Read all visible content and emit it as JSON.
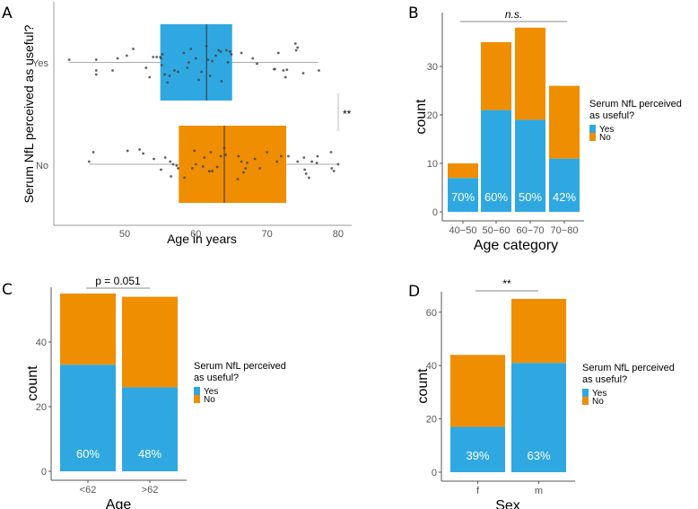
{
  "colors": {
    "yes": "#2fa8e1",
    "no": "#ef8e01",
    "axis": "#999999",
    "point": "#444444",
    "median": "#333333"
  },
  "chart_data": [
    {
      "panel": "A",
      "type": "boxplot",
      "xlabel": "Age in years",
      "ylabel": "Serum NfL perceived as useful?",
      "xlim": [
        40.5,
        81.5
      ],
      "xticks": [
        50,
        60,
        70,
        80
      ],
      "categories": [
        "Yes",
        "No"
      ],
      "boxes": [
        {
          "group": "Yes",
          "min": 42.2,
          "q1": 55.0,
          "median": 61.5,
          "q3": 65.1,
          "max": 77.2
        },
        {
          "group": "No",
          "min": 45.0,
          "q1": 57.6,
          "median": 64.0,
          "q3": 72.7,
          "max": 80.0
        }
      ],
      "points": {
        "Yes": [
          [
            42.2,
            0.1
          ],
          [
            46,
            0.1
          ],
          [
            46,
            -0.3
          ],
          [
            46,
            -0.45
          ],
          [
            48.3,
            -0.3
          ],
          [
            50.3,
            0.25
          ],
          [
            51.2,
            0.5
          ],
          [
            49,
            0.15
          ],
          [
            53,
            -0.2
          ],
          [
            53.5,
            -0.55
          ],
          [
            54,
            0.2
          ],
          [
            54.5,
            0.2
          ],
          [
            55,
            0.2
          ],
          [
            55.1,
            0.15
          ],
          [
            55.3,
            0.3
          ],
          [
            55.2,
            -0.1
          ],
          [
            55.6,
            -0.45
          ],
          [
            56,
            -0.75
          ],
          [
            56.3,
            -0.5
          ],
          [
            57,
            -0.3
          ],
          [
            57.5,
            -0.35
          ],
          [
            58.3,
            0.35
          ],
          [
            58.8,
            -0.2
          ],
          [
            59,
            0.0
          ],
          [
            59.3,
            0.5
          ],
          [
            60,
            0.15
          ],
          [
            60.4,
            -0.65
          ],
          [
            60.8,
            -0.35
          ],
          [
            61.5,
            0.6
          ],
          [
            61.7,
            0.1
          ],
          [
            62,
            -0.5
          ],
          [
            62.3,
            0.05
          ],
          [
            62.8,
            0.25
          ],
          [
            63.2,
            0.45
          ],
          [
            63.5,
            0.4
          ],
          [
            63.6,
            -0.7
          ],
          [
            64.3,
            0.45
          ],
          [
            64.5,
            0.0
          ],
          [
            64.8,
            0.4
          ],
          [
            65,
            0.3
          ],
          [
            66.4,
            0.35
          ],
          [
            68,
            0.15
          ],
          [
            68.6,
            -0.05
          ],
          [
            71,
            -0.25
          ],
          [
            71.1,
            -0.25
          ],
          [
            71.6,
            0.35
          ],
          [
            72.3,
            -0.3
          ],
          [
            72.6,
            -0.55
          ],
          [
            72.8,
            -0.27
          ],
          [
            74,
            0.7
          ],
          [
            74.1,
            0.45
          ],
          [
            74.3,
            0.55
          ],
          [
            75.1,
            -0.4
          ],
          [
            77.3,
            -0.3
          ]
        ],
        "No": [
          [
            45.0,
            0.1
          ],
          [
            45.6,
            0.45
          ],
          [
            50.4,
            0.5
          ],
          [
            52.1,
            0.55
          ],
          [
            52.6,
            0.4
          ],
          [
            54.1,
            0.2
          ],
          [
            55.7,
            0.25
          ],
          [
            55.1,
            -0.2
          ],
          [
            56.4,
            0.1
          ],
          [
            56.5,
            -0.45
          ],
          [
            56.8,
            0.0
          ],
          [
            57.3,
            -0.05
          ],
          [
            57.5,
            -0.15
          ],
          [
            58.4,
            -0.5
          ],
          [
            59.8,
            0.5
          ],
          [
            60.0,
            0.0
          ],
          [
            59.5,
            -0.15
          ],
          [
            61.2,
            0.25
          ],
          [
            61.0,
            -0.08
          ],
          [
            61.9,
            -0.26
          ],
          [
            62.1,
            0.45
          ],
          [
            62.3,
            -0.25
          ],
          [
            63.0,
            -0.1
          ],
          [
            63.5,
            0.3
          ],
          [
            64.0,
            0.6
          ],
          [
            64.2,
            0.35
          ],
          [
            66.0,
            0.3
          ],
          [
            66.4,
            0.1
          ],
          [
            66.7,
            -0.3
          ],
          [
            67.2,
            0.05
          ],
          [
            67.0,
            -0.15
          ],
          [
            65.9,
            -0.55
          ],
          [
            68.3,
            0.2
          ],
          [
            69.0,
            -0.15
          ],
          [
            70.0,
            0.45
          ],
          [
            71.4,
            0.1
          ],
          [
            72.0,
            0.3
          ],
          [
            73.0,
            0.3
          ],
          [
            74.3,
            0.1
          ],
          [
            75.2,
            0.25
          ],
          [
            75.3,
            -0.2
          ],
          [
            75.5,
            -0.35
          ],
          [
            75.9,
            -0.5
          ],
          [
            76.3,
            0.1
          ],
          [
            77.1,
            0.3
          ],
          [
            77.0,
            0.05
          ],
          [
            79.0,
            0.45
          ],
          [
            79.1,
            -0.15
          ],
          [
            79.4,
            -0.25
          ],
          [
            80.0,
            0.0
          ]
        ]
      },
      "annotation": "**"
    },
    {
      "panel": "B",
      "type": "bar",
      "stacked": true,
      "xlabel": "Age category",
      "ylabel": "count",
      "ylim": [
        0,
        39
      ],
      "yticks": [
        0,
        10,
        20,
        30
      ],
      "categories": [
        "40−50",
        "50−60",
        "60−70",
        "70−80"
      ],
      "series": [
        {
          "name": "Yes",
          "values": [
            7,
            21,
            19,
            11
          ]
        },
        {
          "name": "No",
          "values": [
            3,
            14,
            19,
            15
          ]
        }
      ],
      "bar_labels": [
        "70%",
        "60%",
        "50%",
        "42%"
      ],
      "annotation": "n.s.",
      "legend": {
        "title_lines": [
          "Serum NfL perceived",
          "as useful?"
        ],
        "entries": [
          "Yes",
          "No"
        ],
        "placement": "right"
      }
    },
    {
      "panel": "C",
      "type": "bar",
      "stacked": true,
      "xlabel": "Age",
      "ylabel": "count",
      "ylim": [
        0,
        57
      ],
      "yticks": [
        0,
        20,
        40
      ],
      "categories": [
        "<62",
        ">62"
      ],
      "series": [
        {
          "name": "Yes",
          "values": [
            33,
            26
          ]
        },
        {
          "name": "No",
          "values": [
            22,
            28
          ]
        }
      ],
      "bar_labels": [
        "60%",
        "48%"
      ],
      "annotation": "p = 0.051",
      "legend": {
        "title_lines": [
          "Serum NfL perceived",
          "as useful?"
        ],
        "entries": [
          "Yes",
          "No"
        ],
        "placement": "right"
      }
    },
    {
      "panel": "D",
      "type": "bar",
      "stacked": true,
      "xlabel": "Sex",
      "ylabel": "count",
      "ylim": [
        0,
        68
      ],
      "yticks": [
        0,
        20,
        40,
        60
      ],
      "categories": [
        "f",
        "m"
      ],
      "series": [
        {
          "name": "Yes",
          "values": [
            17,
            41
          ]
        },
        {
          "name": "No",
          "values": [
            27,
            24
          ]
        }
      ],
      "bar_labels": [
        "39%",
        "63%"
      ],
      "annotation": "**",
      "legend": {
        "title_lines": [
          "Serum NfL perceived",
          "as useful?"
        ],
        "entries": [
          "Yes",
          "No"
        ],
        "placement": "right"
      }
    }
  ]
}
